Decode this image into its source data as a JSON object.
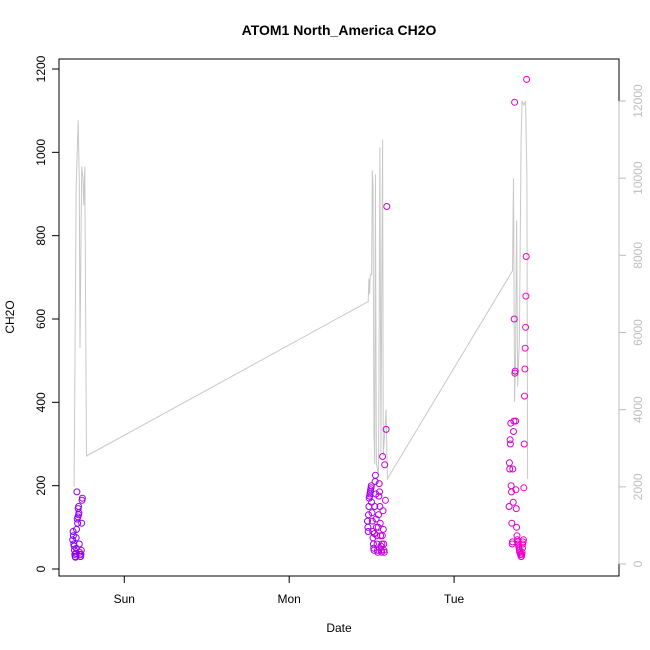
{
  "chart_data": {
    "type": "scatter",
    "title": "ATOM1 North_America CH2O",
    "xlabel": "Date",
    "ylabel": "CH2O",
    "x_tick_labels": [
      "Sun",
      "Mon",
      "Tue"
    ],
    "x_tick_values": [
      24,
      48,
      72
    ],
    "xlim": [
      14.5,
      96
    ],
    "ylim": [
      0,
      1200
    ],
    "y_ticks": [
      0,
      200,
      400,
      600,
      800,
      1000,
      1200
    ],
    "y2lim": [
      0,
      12500
    ],
    "y2_ticks": [
      0,
      2000,
      4000,
      6000,
      8000,
      10000,
      12000
    ],
    "grid": false,
    "colors": {
      "points_start": "#7f00ff",
      "points_end": "#ff00bf",
      "line": "#c8c8c8",
      "right_axis": "#bebebe"
    },
    "line_series": [
      [
        16.7,
        2000
      ],
      [
        17.0,
        9800
      ],
      [
        17.2,
        11000
      ],
      [
        17.3,
        11500
      ],
      [
        17.45,
        9900
      ],
      [
        17.55,
        5600
      ],
      [
        17.8,
        10300
      ],
      [
        18.0,
        10000
      ],
      [
        18.1,
        9300
      ],
      [
        18.25,
        10300
      ],
      [
        18.5,
        2800
      ],
      [
        59.5,
        6800
      ],
      [
        59.6,
        7400
      ],
      [
        59.7,
        7000
      ],
      [
        59.8,
        7500
      ],
      [
        60.0,
        7500
      ],
      [
        60.1,
        10200
      ],
      [
        60.2,
        9800
      ],
      [
        60.35,
        3400
      ],
      [
        60.45,
        2600
      ],
      [
        60.55,
        10100
      ],
      [
        60.7,
        2600
      ],
      [
        61.0,
        2300
      ],
      [
        61.2,
        10800
      ],
      [
        61.35,
        2900
      ],
      [
        61.6,
        11000
      ],
      [
        61.7,
        2800
      ],
      [
        62.1,
        4000
      ],
      [
        62.3,
        2200
      ],
      [
        62.6,
        2300
      ],
      [
        80.5,
        7600
      ],
      [
        80.65,
        10000
      ],
      [
        80.8,
        4200
      ],
      [
        80.95,
        5500
      ],
      [
        81.1,
        8900
      ],
      [
        81.25,
        4600
      ],
      [
        81.5,
        5800
      ],
      [
        81.75,
        11000
      ],
      [
        81.9,
        12000
      ],
      [
        82.15,
        11900
      ],
      [
        82.4,
        12000
      ],
      [
        82.6,
        10000
      ],
      [
        82.7,
        2200
      ]
    ],
    "points": [
      [
        16.5,
        70
      ],
      [
        16.55,
        90
      ],
      [
        16.6,
        80
      ],
      [
        16.65,
        60
      ],
      [
        16.7,
        55
      ],
      [
        16.75,
        45
      ],
      [
        16.8,
        35
      ],
      [
        16.85,
        30
      ],
      [
        16.9,
        28
      ],
      [
        16.95,
        38
      ],
      [
        17.0,
        75
      ],
      [
        17.05,
        95
      ],
      [
        17.1,
        185
      ],
      [
        17.15,
        120
      ],
      [
        17.2,
        110
      ],
      [
        17.25,
        125
      ],
      [
        17.3,
        145
      ],
      [
        17.35,
        150
      ],
      [
        17.4,
        135
      ],
      [
        17.45,
        60
      ],
      [
        17.5,
        40
      ],
      [
        17.55,
        35
      ],
      [
        17.6,
        30
      ],
      [
        17.65,
        30
      ],
      [
        17.7,
        35
      ],
      [
        17.75,
        45
      ],
      [
        17.8,
        110
      ],
      [
        17.85,
        165
      ],
      [
        17.9,
        170
      ],
      [
        17.35,
        130
      ],
      [
        17.0,
        50
      ],
      [
        59.4,
        115
      ],
      [
        59.45,
        100
      ],
      [
        59.5,
        90
      ],
      [
        59.55,
        130
      ],
      [
        59.6,
        150
      ],
      [
        59.65,
        170
      ],
      [
        59.7,
        175
      ],
      [
        59.75,
        180
      ],
      [
        59.8,
        185
      ],
      [
        59.85,
        190
      ],
      [
        59.9,
        195
      ],
      [
        59.95,
        200
      ],
      [
        60.0,
        160
      ],
      [
        60.05,
        135
      ],
      [
        60.1,
        115
      ],
      [
        60.15,
        90
      ],
      [
        60.2,
        75
      ],
      [
        60.25,
        60
      ],
      [
        60.3,
        50
      ],
      [
        60.35,
        45
      ],
      [
        60.4,
        85
      ],
      [
        60.45,
        150
      ],
      [
        60.5,
        210
      ],
      [
        60.55,
        225
      ],
      [
        60.6,
        180
      ],
      [
        60.65,
        120
      ],
      [
        60.7,
        100
      ],
      [
        60.75,
        80
      ],
      [
        60.8,
        60
      ],
      [
        60.85,
        45
      ],
      [
        60.9,
        40
      ],
      [
        60.95,
        100
      ],
      [
        61.0,
        130
      ],
      [
        61.05,
        175
      ],
      [
        61.1,
        205
      ],
      [
        61.15,
        185
      ],
      [
        61.2,
        150
      ],
      [
        61.25,
        110
      ],
      [
        61.3,
        80
      ],
      [
        61.35,
        55
      ],
      [
        61.4,
        45
      ],
      [
        61.45,
        40
      ],
      [
        61.5,
        60
      ],
      [
        61.55,
        80
      ],
      [
        61.6,
        270
      ],
      [
        61.65,
        140
      ],
      [
        61.7,
        95
      ],
      [
        61.75,
        60
      ],
      [
        61.8,
        45
      ],
      [
        61.85,
        40
      ],
      [
        61.9,
        250
      ],
      [
        62.0,
        165
      ],
      [
        62.1,
        335
      ],
      [
        62.2,
        870
      ],
      [
        80.0,
        150
      ],
      [
        80.05,
        255
      ],
      [
        80.1,
        240
      ],
      [
        80.15,
        310
      ],
      [
        80.2,
        300
      ],
      [
        80.25,
        350
      ],
      [
        80.3,
        200
      ],
      [
        80.35,
        185
      ],
      [
        80.4,
        110
      ],
      [
        80.45,
        60
      ],
      [
        80.5,
        65
      ],
      [
        80.55,
        240
      ],
      [
        80.6,
        160
      ],
      [
        80.65,
        330
      ],
      [
        80.7,
        355
      ],
      [
        80.75,
        600
      ],
      [
        80.8,
        1120
      ],
      [
        80.85,
        470
      ],
      [
        80.9,
        475
      ],
      [
        80.95,
        355
      ],
      [
        81.0,
        190
      ],
      [
        81.05,
        145
      ],
      [
        81.1,
        100
      ],
      [
        81.15,
        80
      ],
      [
        81.2,
        70
      ],
      [
        81.25,
        65
      ],
      [
        81.3,
        60
      ],
      [
        81.35,
        60
      ],
      [
        81.4,
        55
      ],
      [
        81.45,
        50
      ],
      [
        81.5,
        45
      ],
      [
        81.55,
        40
      ],
      [
        81.6,
        40
      ],
      [
        81.65,
        35
      ],
      [
        81.7,
        35
      ],
      [
        81.75,
        30
      ],
      [
        81.8,
        30
      ],
      [
        81.85,
        35
      ],
      [
        81.9,
        40
      ],
      [
        81.95,
        50
      ],
      [
        82.0,
        60
      ],
      [
        82.05,
        65
      ],
      [
        82.1,
        70
      ],
      [
        82.15,
        195
      ],
      [
        82.2,
        300
      ],
      [
        82.25,
        415
      ],
      [
        82.3,
        480
      ],
      [
        82.35,
        530
      ],
      [
        82.4,
        580
      ],
      [
        82.45,
        655
      ],
      [
        82.5,
        750
      ],
      [
        82.55,
        1175
      ]
    ]
  }
}
